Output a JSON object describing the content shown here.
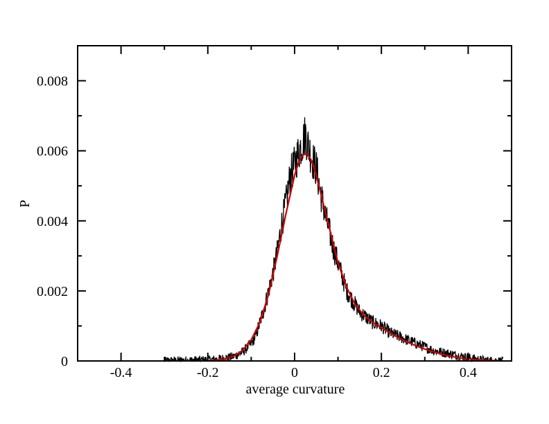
{
  "chart_data": {
    "type": "line",
    "title": "",
    "xlabel": "average curvature",
    "ylabel": "P",
    "xlim": [
      -0.5,
      0.5
    ],
    "ylim": [
      0,
      0.009
    ],
    "x_ticks": [
      -0.4,
      -0.2,
      0,
      0.2,
      0.4
    ],
    "x_tick_labels": [
      "-0.4",
      "-0.2",
      "0",
      "0.2",
      "0.4"
    ],
    "y_ticks": [
      0,
      0.002,
      0.004,
      0.006,
      0.008
    ],
    "y_tick_labels": [
      "0",
      "0.002",
      "0.004",
      "0.006",
      "0.008"
    ],
    "grid": false,
    "legend": "none",
    "series": [
      {
        "color": "#000000",
        "style": "noisy histogram",
        "x": [
          -0.3,
          -0.25,
          -0.2,
          -0.18,
          -0.16,
          -0.14,
          -0.12,
          -0.1,
          -0.09,
          -0.08,
          -0.07,
          -0.06,
          -0.05,
          -0.04,
          -0.03,
          -0.02,
          -0.01,
          0.0,
          0.01,
          0.02,
          0.025,
          0.03,
          0.04,
          0.05,
          0.06,
          0.07,
          0.08,
          0.09,
          0.1,
          0.11,
          0.12,
          0.13,
          0.14,
          0.15,
          0.16,
          0.18,
          0.2,
          0.22,
          0.24,
          0.26,
          0.28,
          0.3,
          0.32,
          0.34,
          0.36,
          0.38,
          0.4,
          0.42,
          0.44,
          0.46,
          0.48
        ],
        "values": [
          0.0,
          2e-05,
          3e-05,
          5e-05,
          8e-05,
          0.00013,
          0.00025,
          0.0005,
          0.0007,
          0.0011,
          0.0015,
          0.002,
          0.0025,
          0.0031,
          0.0039,
          0.0045,
          0.0053,
          0.0056,
          0.006,
          0.0063,
          0.0065,
          0.0062,
          0.0058,
          0.0055,
          0.0048,
          0.0042,
          0.0037,
          0.0032,
          0.0028,
          0.0024,
          0.002,
          0.0018,
          0.0016,
          0.0014,
          0.0013,
          0.0011,
          0.001,
          0.0008,
          0.0007,
          0.0006,
          0.0005,
          0.0004,
          0.0003,
          0.00025,
          0.0002,
          0.00015,
          0.0001,
          5e-05,
          2e-05,
          1e-05,
          0.0
        ]
      },
      {
        "color": "#cc0000",
        "style": "smooth fit",
        "x": [
          -0.2,
          -0.18,
          -0.16,
          -0.14,
          -0.12,
          -0.1,
          -0.08,
          -0.06,
          -0.04,
          -0.02,
          0.0,
          0.01,
          0.02,
          0.03,
          0.04,
          0.05,
          0.06,
          0.08,
          0.1,
          0.12,
          0.14,
          0.16,
          0.18,
          0.2,
          0.22,
          0.24,
          0.26,
          0.28,
          0.3,
          0.32,
          0.34,
          0.36,
          0.38,
          0.4,
          0.42,
          0.44,
          0.46,
          0.48
        ],
        "values": [
          0.0,
          2e-05,
          6e-05,
          0.00014,
          0.0003,
          0.0006,
          0.0011,
          0.0019,
          0.003,
          0.0042,
          0.0053,
          0.0057,
          0.0059,
          0.0059,
          0.0057,
          0.0053,
          0.0048,
          0.0038,
          0.0028,
          0.0021,
          0.0016,
          0.0013,
          0.0011,
          0.00095,
          0.0008,
          0.00066,
          0.00054,
          0.00043,
          0.00034,
          0.00026,
          0.00019,
          0.00013,
          9e-05,
          6e-05,
          3e-05,
          2e-05,
          1e-05,
          0.0
        ]
      }
    ]
  }
}
